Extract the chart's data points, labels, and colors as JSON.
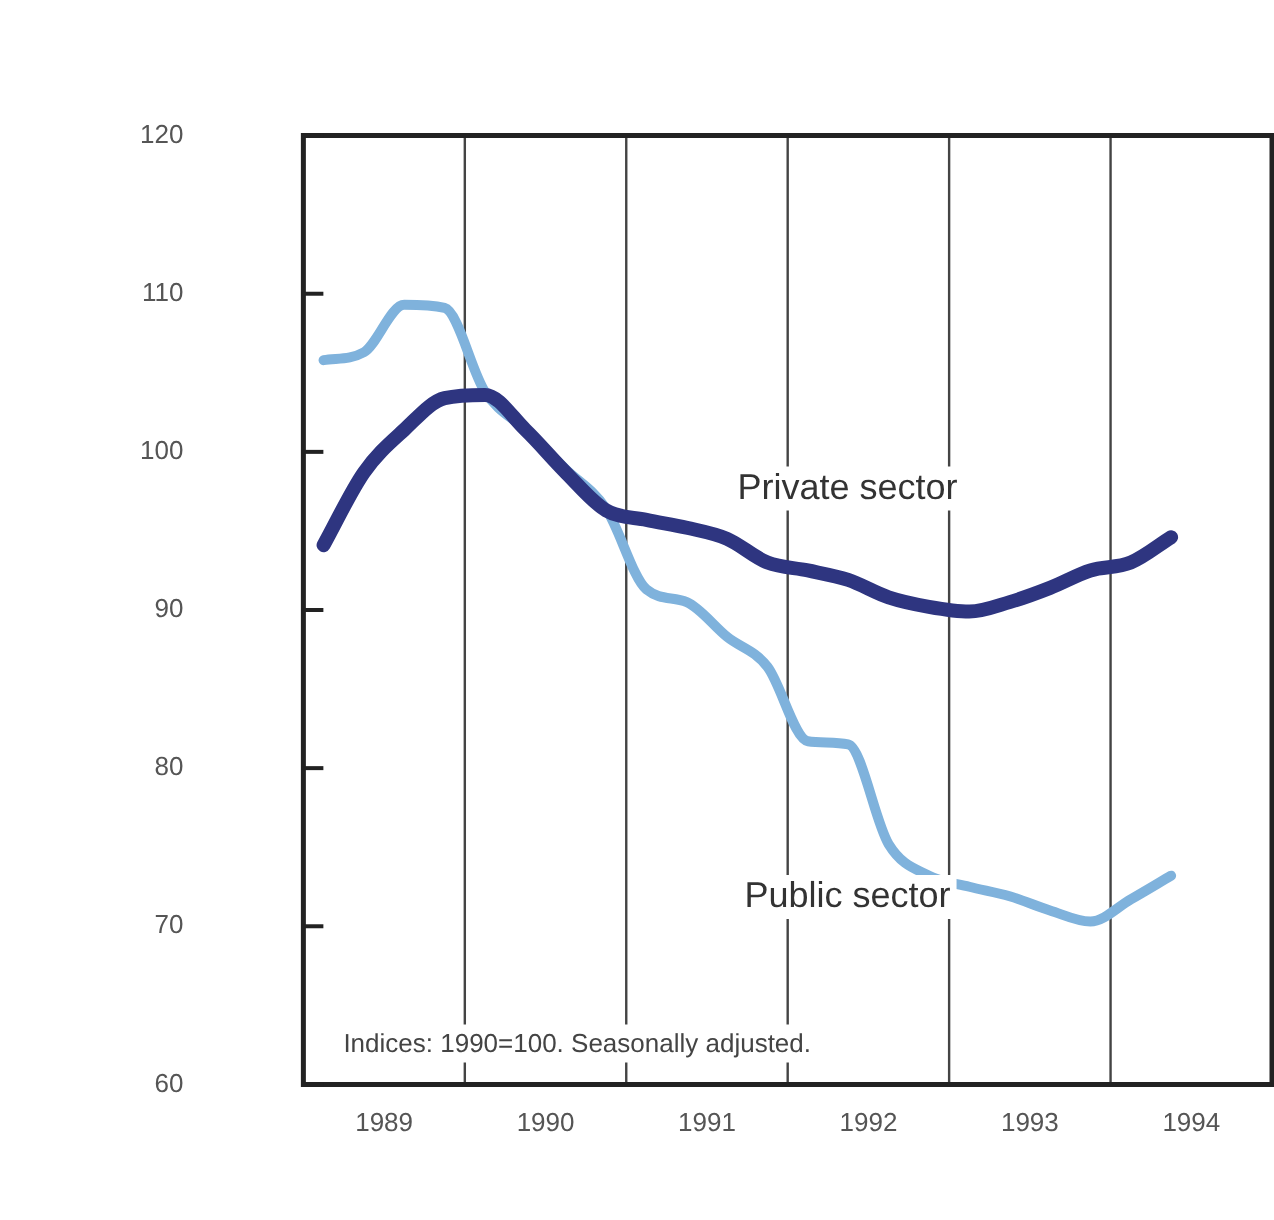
{
  "chart_data": {
    "type": "line",
    "x": [
      1989.125,
      1989.375,
      1989.625,
      1989.875,
      1990.125,
      1990.375,
      1990.625,
      1990.875,
      1991.125,
      1991.375,
      1991.625,
      1991.875,
      1992.125,
      1992.375,
      1992.625,
      1992.875,
      1993.125,
      1993.375,
      1993.625,
      1993.875,
      1994.125,
      1994.375
    ],
    "series": [
      {
        "name": "Private sector",
        "color": "#2e3580",
        "values": [
          94.1,
          98.7,
          101.4,
          103.4,
          103.6,
          101.4,
          98.7,
          96.3,
          95.7,
          95.2,
          94.5,
          93.0,
          92.5,
          91.9,
          90.8,
          90.2,
          89.9,
          90.5,
          91.4,
          92.5,
          93.0,
          94.6
        ]
      },
      {
        "name": "Public sector",
        "color": "#7fb2dc",
        "values": [
          105.8,
          106.3,
          109.3,
          109.1,
          103.8,
          101.4,
          98.9,
          96.4,
          91.3,
          90.5,
          88.3,
          86.4,
          81.7,
          81.5,
          75.2,
          73.2,
          72.5,
          71.9,
          71.0,
          70.3,
          71.7,
          73.2
        ]
      }
    ],
    "xlim": [
      1989,
      1995
    ],
    "xticks": [
      {
        "value": 1989.5,
        "label": "1989"
      },
      {
        "value": 1990.5,
        "label": "1990"
      },
      {
        "value": 1991.5,
        "label": "1991"
      },
      {
        "value": 1992.5,
        "label": "1992"
      },
      {
        "value": 1993.5,
        "label": "1993"
      },
      {
        "value": 1994.5,
        "label": "1994"
      }
    ],
    "ylim": [
      60,
      120
    ],
    "yticks": [
      60,
      70,
      80,
      90,
      100,
      110,
      120
    ],
    "ref_lines": [
      {
        "axis": "x",
        "value": 1990
      },
      {
        "axis": "x",
        "value": 1991
      },
      {
        "axis": "x",
        "value": 1992
      },
      {
        "axis": "x",
        "value": 1993
      },
      {
        "axis": "x",
        "value": 1994
      }
    ],
    "annotations": [
      "Indices: 1990=100. Seasonally adjusted."
    ],
    "grid": false,
    "legend": false,
    "marker": "none",
    "line_style": "solid"
  }
}
